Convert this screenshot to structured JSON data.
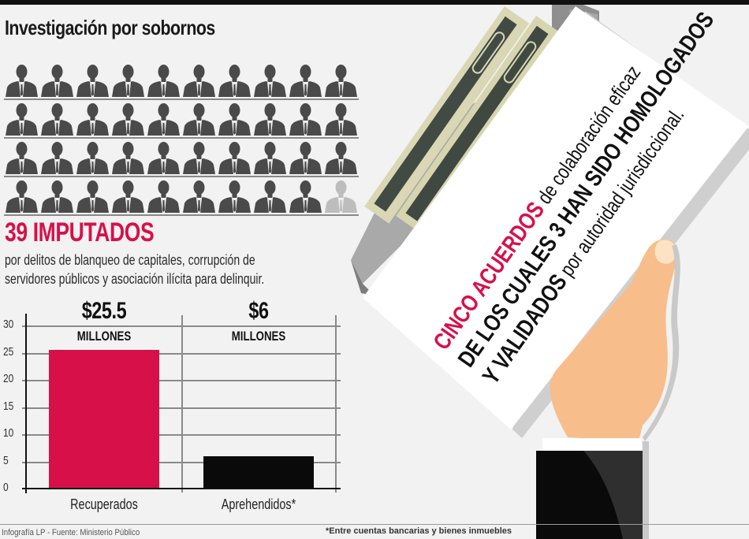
{
  "header": {
    "title": "Investigación por sobornos"
  },
  "people_grid": {
    "rows": 4,
    "columns": 10,
    "highlighted_count": 39,
    "total_icons": 40,
    "active_color": "#4a4a4a",
    "inactive_color": "#bdbdbd",
    "icon": "person-in-suit-icon"
  },
  "summary": {
    "headline": "39 IMPUTADOS",
    "description_line1": "por delitos de blanqueo de capitales, corrupción de",
    "description_line2": "servidores públicos y asociación ilícita para delinquir."
  },
  "chart_data": {
    "type": "bar",
    "title": "",
    "categories": [
      "Recuperados",
      "Aprehendidos*"
    ],
    "values": [
      25.5,
      6
    ],
    "value_labels": [
      "$25.5",
      "$6"
    ],
    "unit_label": "MILLONES",
    "colors": [
      "#d7104a",
      "#0a0a0a"
    ],
    "xlabel": "",
    "ylabel": "",
    "ylim": [
      0,
      30
    ],
    "yticks": [
      0,
      5,
      10,
      15,
      20,
      25,
      30
    ],
    "grid": true,
    "legend": "none"
  },
  "chart_labels": {
    "yticks": [
      "30",
      "25",
      "20",
      "15",
      "10",
      "5",
      "0"
    ],
    "bar1_value": "$25.5",
    "bar1_unit": "MILLONES",
    "bar1_category": "Recuperados",
    "bar2_value": "$6",
    "bar2_unit": "MILLONES",
    "bar2_category": "Aprehendidos*"
  },
  "document": {
    "line1_highlight": "CINCO ACUERDOS",
    "line1_rest": " de colaboración eficaz",
    "line2_bold": "DE LOS CUALES 3 HAN SIDO HOMOLOGADOS",
    "line3_bold": "Y VALIDADOS",
    "line3_rest": " por autoridad jurisdiccional.",
    "highlight_color": "#d7104a"
  },
  "footer": {
    "source": "Infografía LP  - Fuente: Ministerio Público",
    "note": "*Entre cuentas bancarias y bienes inmuebles"
  }
}
